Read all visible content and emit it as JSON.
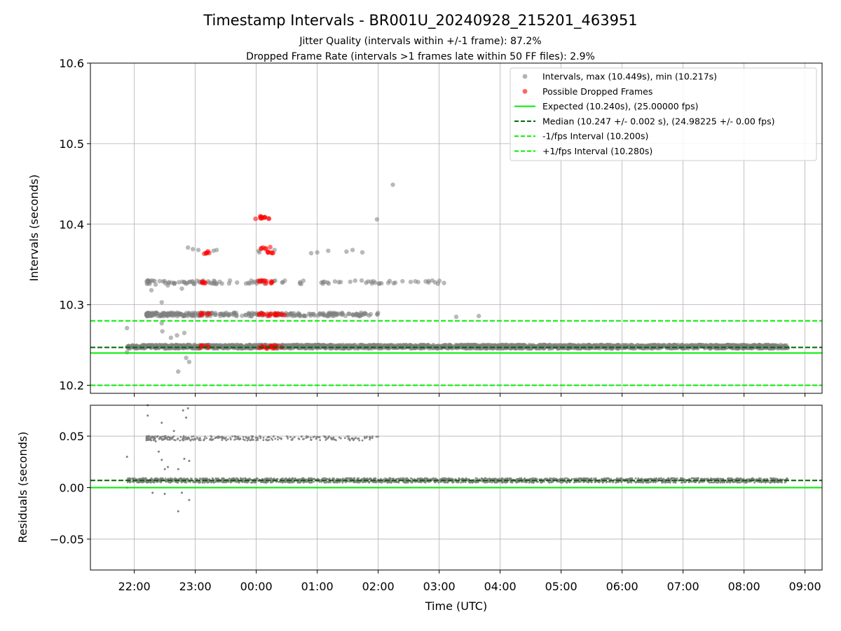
{
  "chart_data": {
    "title": "Timestamp Intervals - BR001U_20240928_215201_463951",
    "subtitle_lines": [
      "Jitter Quality (intervals within +/-1 frame): 87.2%",
      "Dropped Frame Rate (intervals >1 frames late within 50 FF files): 2.9%"
    ],
    "xlabel": "Time (UTC)",
    "x_ticks": [
      "22:00",
      "23:00",
      "00:00",
      "01:00",
      "02:00",
      "03:00",
      "04:00",
      "05:00",
      "06:00",
      "07:00",
      "08:00",
      "09:00"
    ],
    "panels": [
      {
        "type": "scatter",
        "ylabel": "Intervals (seconds)",
        "y_ticks": [
          "10.2",
          "10.3",
          "10.4",
          "10.5",
          "10.6"
        ],
        "ylim": [
          10.19,
          10.6
        ],
        "xlim_hours_after_2200": [
          -0.72,
          11.28
        ],
        "grid": true,
        "legend_position": "upper right",
        "legend": [
          {
            "label": "Intervals, max (10.449s), min (10.217s)",
            "marker": "circle",
            "color": "#808080"
          },
          {
            "label": "Possible Dropped Frames",
            "marker": "circle",
            "color": "#ff0000"
          },
          {
            "label": "Expected (10.240s), (25.00000 fps)",
            "line": "solid",
            "color": "#00ee00"
          },
          {
            "label": "Median (10.247 +/- 0.002 s), (24.98225 +/- 0.00 fps)",
            "line": "dashed",
            "color": "#006400"
          },
          {
            "label": "-1/fps Interval (10.200s)",
            "line": "dashed",
            "color": "#00ee00"
          },
          {
            "label": "+1/fps Interval (10.280s)",
            "line": "dashed",
            "color": "#00ee00"
          }
        ],
        "reference_lines": [
          {
            "name": "Expected",
            "y": 10.24,
            "style": "solid",
            "color": "#00ee00"
          },
          {
            "name": "Median",
            "y": 10.247,
            "style": "dashed",
            "color": "#006400"
          },
          {
            "name": "-1/fps",
            "y": 10.2,
            "style": "dashed",
            "color": "#00ee00"
          },
          {
            "name": "+1/fps",
            "y": 10.28,
            "style": "dashed",
            "color": "#00ee00"
          }
        ],
        "series": [
          {
            "name": "Intervals",
            "color": "#808080",
            "bands": [
              {
                "y": 10.248,
                "x_range_hours": [
                  -0.12,
                  10.72
                ],
                "density": "dense"
              },
              {
                "y": 10.288,
                "x_range_hours": [
                  0.2,
                  4.0
                ],
                "density": "medium"
              },
              {
                "y": 10.328,
                "x_range_hours": [
                  0.2,
                  5.1
                ],
                "density": "sparse"
              }
            ],
            "points": [
              {
                "x": -0.12,
                "y": 10.271
              },
              {
                "x": -0.12,
                "y": 10.241
              },
              {
                "x": 0.22,
                "y": 10.33
              },
              {
                "x": 0.28,
                "y": 10.318
              },
              {
                "x": 0.35,
                "y": 10.325
              },
              {
                "x": 0.45,
                "y": 10.303
              },
              {
                "x": 0.45,
                "y": 10.277
              },
              {
                "x": 0.46,
                "y": 10.267
              },
              {
                "x": 0.55,
                "y": 10.324
              },
              {
                "x": 0.6,
                "y": 10.259
              },
              {
                "x": 0.65,
                "y": 10.327
              },
              {
                "x": 0.7,
                "y": 10.262
              },
              {
                "x": 0.72,
                "y": 10.217
              },
              {
                "x": 0.78,
                "y": 10.32
              },
              {
                "x": 0.82,
                "y": 10.265
              },
              {
                "x": 0.85,
                "y": 10.234
              },
              {
                "x": 0.9,
                "y": 10.229
              },
              {
                "x": 0.88,
                "y": 10.371
              },
              {
                "x": 0.96,
                "y": 10.369
              },
              {
                "x": 1.05,
                "y": 10.368
              },
              {
                "x": 1.3,
                "y": 10.367
              },
              {
                "x": 1.35,
                "y": 10.368
              },
              {
                "x": 2.04,
                "y": 10.367
              },
              {
                "x": 2.05,
                "y": 10.365
              },
              {
                "x": 2.3,
                "y": 10.368
              },
              {
                "x": 2.9,
                "y": 10.364
              },
              {
                "x": 3.0,
                "y": 10.365
              },
              {
                "x": 3.18,
                "y": 10.367
              },
              {
                "x": 3.48,
                "y": 10.366
              },
              {
                "x": 3.58,
                "y": 10.368
              },
              {
                "x": 3.74,
                "y": 10.365
              },
              {
                "x": 3.98,
                "y": 10.406
              },
              {
                "x": 4.24,
                "y": 10.449
              },
              {
                "x": 4.98,
                "y": 10.326
              },
              {
                "x": 5.08,
                "y": 10.327
              },
              {
                "x": 5.28,
                "y": 10.285
              },
              {
                "x": 5.65,
                "y": 10.286
              }
            ]
          },
          {
            "name": "Possible Dropped Frames",
            "color": "#ff0000",
            "points": [
              {
                "x": 1.12,
                "y": 10.328
              },
              {
                "x": 1.15,
                "y": 10.288
              },
              {
                "x": 1.15,
                "y": 10.248
              },
              {
                "x": 1.18,
                "y": 10.365
              },
              {
                "x": 2.06,
                "y": 10.408
              },
              {
                "x": 2.13,
                "y": 10.408
              },
              {
                "x": 2.16,
                "y": 10.37
              },
              {
                "x": 2.2,
                "y": 10.365
              },
              {
                "x": 2.1,
                "y": 10.33
              },
              {
                "x": 2.2,
                "y": 10.328
              },
              {
                "x": 2.1,
                "y": 10.288
              },
              {
                "x": 2.25,
                "y": 10.288
              },
              {
                "x": 2.4,
                "y": 10.288
              },
              {
                "x": 2.1,
                "y": 10.248
              },
              {
                "x": 2.25,
                "y": 10.247
              },
              {
                "x": 2.35,
                "y": 10.248
              }
            ]
          }
        ]
      },
      {
        "type": "scatter",
        "ylabel": "Residuals (seconds)",
        "y_ticks": [
          "−0.05",
          "0.00",
          "0.05"
        ],
        "ylim": [
          -0.08,
          0.08
        ],
        "grid": true,
        "reference_lines": [
          {
            "name": "Zero",
            "y": 0.0,
            "style": "solid",
            "color": "#00ee00"
          },
          {
            "name": "Median",
            "y": 0.007,
            "style": "dashed",
            "color": "#006400"
          }
        ],
        "series": [
          {
            "name": "Residuals",
            "color": "#808080",
            "bands": [
              {
                "y": 0.007,
                "x_range_hours": [
                  -0.12,
                  10.72
                ],
                "density": "dense"
              },
              {
                "y": 0.048,
                "x_range_hours": [
                  0.2,
                  4.0
                ],
                "density": "medium"
              }
            ],
            "points": [
              {
                "x": -0.12,
                "y": 0.03
              },
              {
                "x": -0.12,
                "y": 0.0
              },
              {
                "x": 0.22,
                "y": 0.08
              },
              {
                "x": 0.22,
                "y": 0.07
              },
              {
                "x": 0.35,
                "y": 0.045
              },
              {
                "x": 0.4,
                "y": 0.035
              },
              {
                "x": 0.45,
                "y": 0.063
              },
              {
                "x": 0.45,
                "y": 0.027
              },
              {
                "x": 0.5,
                "y": 0.018
              },
              {
                "x": 0.5,
                "y": -0.006
              },
              {
                "x": 0.55,
                "y": 0.02
              },
              {
                "x": 0.65,
                "y": 0.055
              },
              {
                "x": 0.72,
                "y": 0.018
              },
              {
                "x": 0.72,
                "y": -0.023
              },
              {
                "x": 0.8,
                "y": 0.075
              },
              {
                "x": 0.82,
                "y": 0.028
              },
              {
                "x": 0.85,
                "y": 0.068
              },
              {
                "x": 0.88,
                "y": 0.077
              },
              {
                "x": 0.9,
                "y": -0.012
              },
              {
                "x": 0.9,
                "y": 0.026
              },
              {
                "x": 0.78,
                "y": -0.005
              },
              {
                "x": 0.3,
                "y": -0.005
              }
            ]
          }
        ]
      }
    ]
  }
}
